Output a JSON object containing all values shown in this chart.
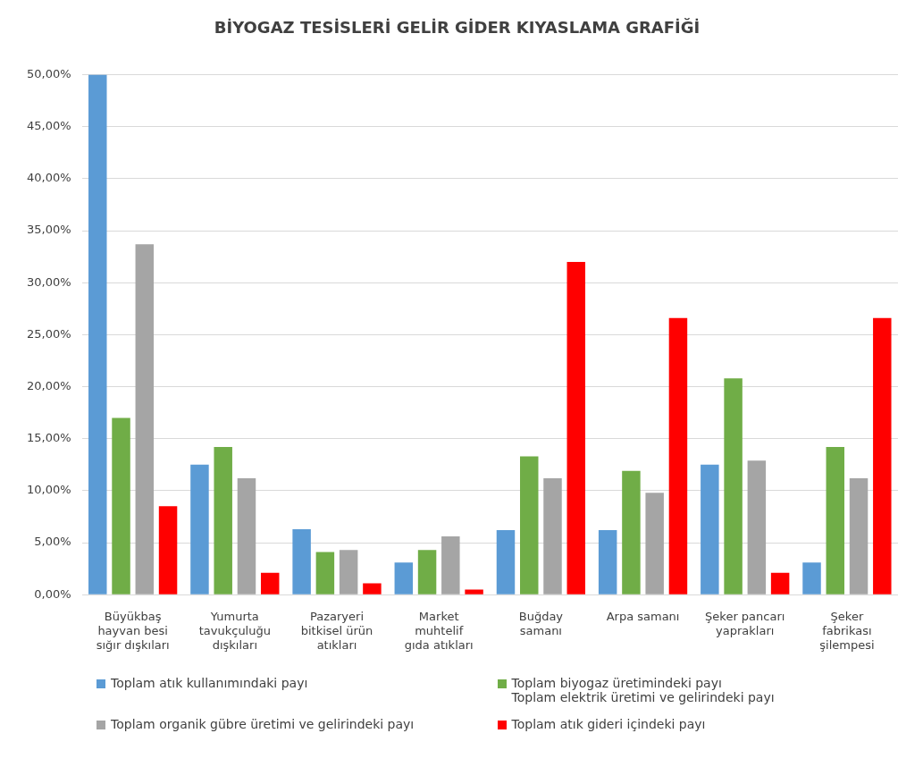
{
  "chart_data": {
    "type": "bar",
    "title": "BİYOGAZ TESİSLERİ GELİR GİDER KIYASLAMA GRAFİĞİ",
    "categories": [
      "Büyükbaş\nhayvan besi\nsığır dışkıları",
      "Yumurta\ntavukçuluğu\ndışkıları",
      "Pazaryeri\nbitkisel ürün\natıkları",
      "Market\nmuhtelif\ngıda atıkları",
      "Buğday\nsamanı",
      "Arpa samanı",
      "Şeker pancarı\nyaprakları",
      "Şeker\nfabrikası\nşilempesi"
    ],
    "series": [
      {
        "name": "Toplam atık kullanımındaki payı",
        "color": "#5b9bd5",
        "values": [
          50,
          12.5,
          6.3,
          3.1,
          6.2,
          6.2,
          12.5,
          3.1
        ]
      },
      {
        "name": "Toplam biyogaz üretimindeki payı\nToplam elektrik üretimi ve gelirindeki payı",
        "color": "#70ad47",
        "values": [
          17,
          14.2,
          4.1,
          4.3,
          13.3,
          11.9,
          20.8,
          14.2
        ]
      },
      {
        "name": "Toplam organik gübre üretimi ve gelirindeki payı",
        "color": "#a5a5a5",
        "values": [
          33.7,
          11.2,
          4.3,
          5.6,
          11.2,
          9.8,
          12.9,
          11.2
        ]
      },
      {
        "name": "Toplam atık gideri içindeki payı",
        "color": "#ff0000",
        "values": [
          8.5,
          2.1,
          1.1,
          0.5,
          32,
          26.6,
          2.1,
          26.6
        ]
      }
    ],
    "ylim": [
      0,
      50
    ],
    "yticks": [
      {
        "value": 0,
        "label": "0,00%"
      },
      {
        "value": 5,
        "label": "5,00%"
      },
      {
        "value": 10,
        "label": "10,00%"
      },
      {
        "value": 15,
        "label": "15,00%"
      },
      {
        "value": 20,
        "label": "20,00%"
      },
      {
        "value": 25,
        "label": "25,00%"
      },
      {
        "value": 30,
        "label": "30,00%"
      },
      {
        "value": 35,
        "label": "35,00%"
      },
      {
        "value": 40,
        "label": "40,00%"
      },
      {
        "value": 45,
        "label": "45,00%"
      },
      {
        "value": 50,
        "label": "50,00%"
      }
    ],
    "grid": "y",
    "legend": "bottom"
  }
}
